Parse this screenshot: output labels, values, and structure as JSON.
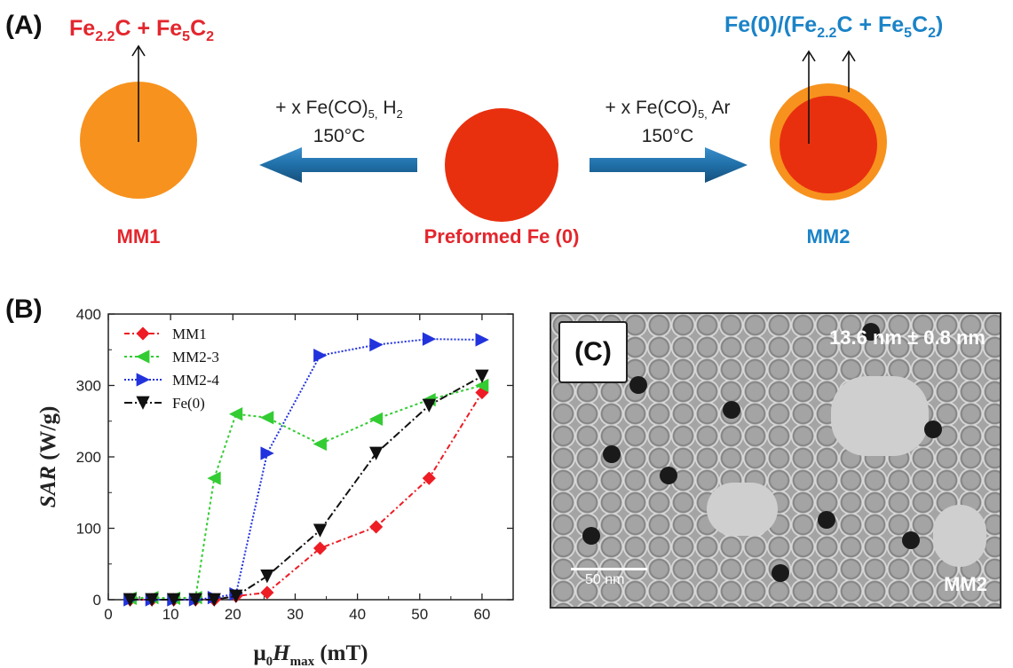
{
  "panels": {
    "a_label": "(A)",
    "b_label": "(B)",
    "c_label": "(C)"
  },
  "scheme": {
    "mm1_product": {
      "base1": "Fe",
      "sub1": "2.2",
      "base2": "C + Fe",
      "sub2": "5",
      "base3": "C",
      "sub3": "2"
    },
    "mm2_product": {
      "pre": "Fe(0)/(Fe",
      "sub1": "2.2",
      "base2": "C + Fe",
      "sub2": "5",
      "base3": "C",
      "sub3": "2",
      "post": ")"
    },
    "left_condition": {
      "line1_pre": "+ x Fe(CO)",
      "line1_sub": "5,",
      "line1_post": " H",
      "line1_sub2": "2",
      "line2": "150°C"
    },
    "right_condition": {
      "line1_pre": "+ x Fe(CO)",
      "line1_sub": "5,",
      "line1_post": " Ar",
      "line2": "150°C"
    },
    "mm1_label": "MM1",
    "center_label": "Preformed Fe (0)",
    "mm2_label": "MM2",
    "colors": {
      "red": "#e3262d",
      "blue": "#1b83c7",
      "orange": "#f7921e",
      "core": "#e8300f",
      "arrow": "#1f6fa8"
    }
  },
  "tem": {
    "scale_text": "13.6 nm ± 0.8 nm",
    "scalebar_text": "50 nm",
    "sample_text": "MM2"
  },
  "chart_data": {
    "type": "line",
    "xlabel": {
      "mu": "μ",
      "sub0": "0",
      "H": "H",
      "submax": "max",
      "unit": " (mT)"
    },
    "ylabel": {
      "main": "SAR",
      "unit": " (W/g)"
    },
    "xlim": [
      0,
      65
    ],
    "ylim": [
      0,
      400
    ],
    "xticks": [
      "0",
      "10",
      "20",
      "30",
      "40",
      "50",
      "60"
    ],
    "yticks": [
      "0",
      "100",
      "200",
      "300",
      "400"
    ],
    "legend_position": "top-left",
    "series": [
      {
        "name": "MM1",
        "color": "#ee1c24",
        "marker": "diamond",
        "dash": "6,3,2,3",
        "x": [
          3.5,
          7,
          10.5,
          14,
          17,
          20.5,
          25.5,
          34,
          43,
          51.5,
          60
        ],
        "y": [
          0,
          0,
          0,
          0,
          0,
          5,
          10,
          72,
          102,
          170,
          290
        ]
      },
      {
        "name": "MM2-3",
        "color": "#33cc33",
        "marker": "triangle-left",
        "dash": "3,3",
        "x": [
          3.5,
          7,
          10.5,
          14,
          17,
          20.5,
          25.5,
          34,
          43,
          51.5,
          60
        ],
        "y": [
          2,
          3,
          2,
          3,
          170,
          260,
          255,
          218,
          253,
          280,
          300
        ]
      },
      {
        "name": "MM2-4",
        "color": "#2233dd",
        "marker": "triangle-right",
        "dash": "2,2",
        "x": [
          3.5,
          7,
          10.5,
          14,
          17,
          20.5,
          25.5,
          34,
          43,
          51.5,
          60
        ],
        "y": [
          0,
          0,
          0,
          0,
          3,
          8,
          205,
          342,
          357,
          365,
          364
        ]
      },
      {
        "name": "Fe(0)",
        "color": "#111111",
        "marker": "triangle-down",
        "dash": "9,3,2,3",
        "x": [
          3.5,
          7,
          10.5,
          14,
          17,
          20.5,
          25.5,
          34,
          43,
          51.5,
          60
        ],
        "y": [
          0,
          0,
          0,
          0,
          0,
          5,
          33,
          97,
          205,
          272,
          313
        ]
      }
    ]
  }
}
